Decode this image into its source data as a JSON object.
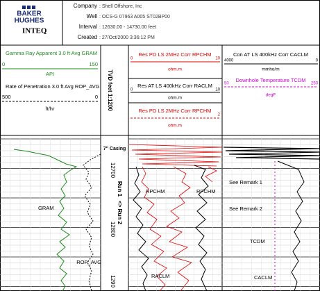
{
  "header": {
    "logo": [
      "BAKER",
      "HUGHES"
    ],
    "division": "INTEQ",
    "fields": [
      {
        "label": "Company",
        "value": ": Shell Offshore, Inc"
      },
      {
        "label": "Well",
        "value": ": OCS-G 07963 A005 ST02BP00"
      },
      {
        "label": "Interval",
        "value": ": 12630.00 - 14730.00 feet"
      },
      {
        "label": "Created",
        "value": ": 27/Oct/2000 3:36:12 PM"
      }
    ]
  },
  "tracks": [
    {
      "curves": [
        {
          "name": "Gamma Ray Apparent 3.0 ft Avg GRAM",
          "left": "0",
          "right": "150",
          "unit": "API"
        },
        {
          "name": "Rate of Penetration 3.0 ft Avg ROP_AVG",
          "left": "500",
          "right": "0",
          "unit": "ft/hr"
        }
      ]
    },
    {
      "curves": [
        {
          "name": "Res PD LS 2MHz Corr RPCHM",
          "left": "0",
          "right": "10",
          "unit": "ohm.m"
        },
        {
          "name": "Res AT LS 400kHz Corr RACLM",
          "left": "0",
          "right": "10",
          "unit": "ohm.m"
        },
        {
          "name": "Res PD LS 2MHz Corr RPCHM",
          "left": "",
          "right": "2",
          "unit": "ohm.m"
        }
      ]
    },
    {
      "curves": [
        {
          "name": "Con AT LS 400kHz Corr CACLM",
          "left": "4000",
          "right": "0",
          "unit": "mmho/m"
        },
        {
          "name": "Downhole Temperature TCDM",
          "left": "50",
          "right": "250",
          "unit": "degF"
        }
      ]
    }
  ],
  "depth_track": {
    "title": "TVD feet 1:1200",
    "casing": "7\" Casing",
    "depths": [
      "12700",
      "12800",
      "1290"
    ],
    "runs": [
      "Run 1",
      "<> Run 2"
    ]
  },
  "annotations": {
    "track1": [
      "GRAM",
      "ROP_AVG"
    ],
    "track2": [
      "RPCHM",
      "RPCHM",
      "RACLM"
    ],
    "track3": [
      "See Remark 1",
      "See Remark 2",
      "TCDM",
      "CACLM"
    ]
  }
}
